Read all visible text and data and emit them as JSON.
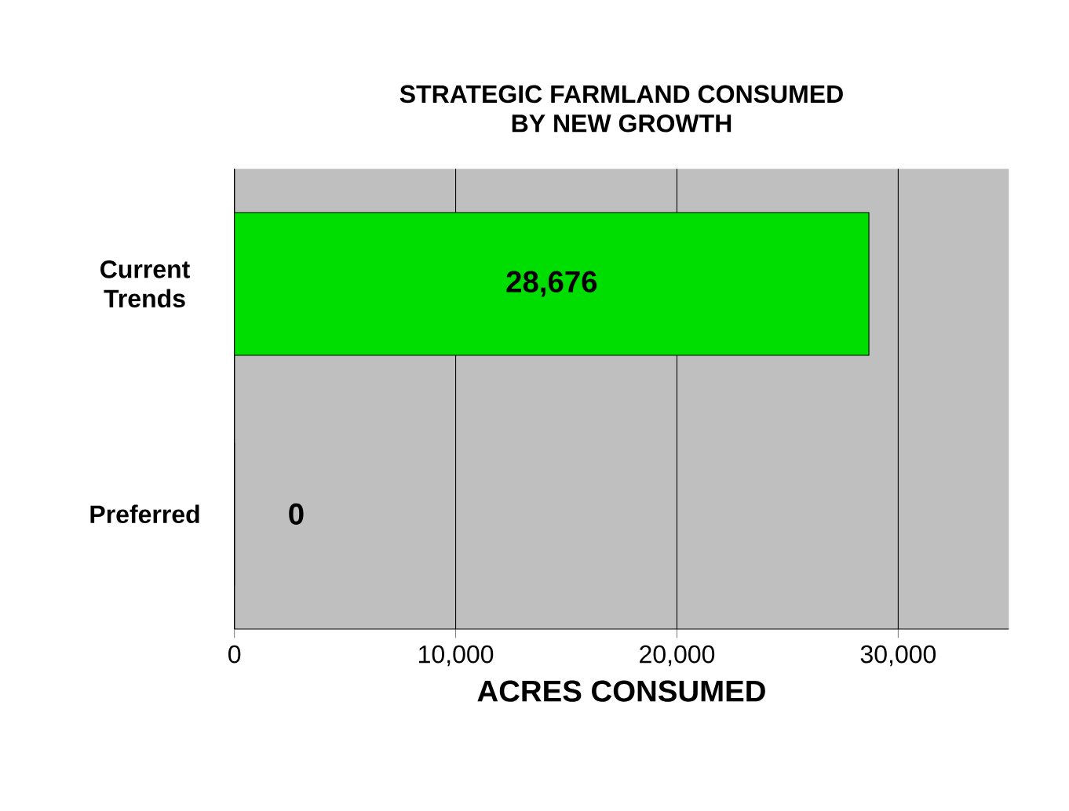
{
  "chart_data": {
    "type": "bar",
    "orientation": "horizontal",
    "title": "STRATEGIC FARMLAND CONSUMED\nBY NEW GROWTH",
    "xlabel": "ACRES CONSUMED",
    "categories": [
      "Current Trends",
      "Preferred"
    ],
    "values": [
      28676,
      0
    ],
    "value_labels": [
      "28,676",
      "0"
    ],
    "color": "#00dd00",
    "xlim": [
      0,
      35000
    ],
    "xticks": [
      0,
      {
        "value": 10000,
        "label": "10,000"
      },
      {
        "value": 20000,
        "label": "20,000"
      },
      {
        "value": 30000,
        "label": "30,000"
      }
    ],
    "grid": "x"
  }
}
